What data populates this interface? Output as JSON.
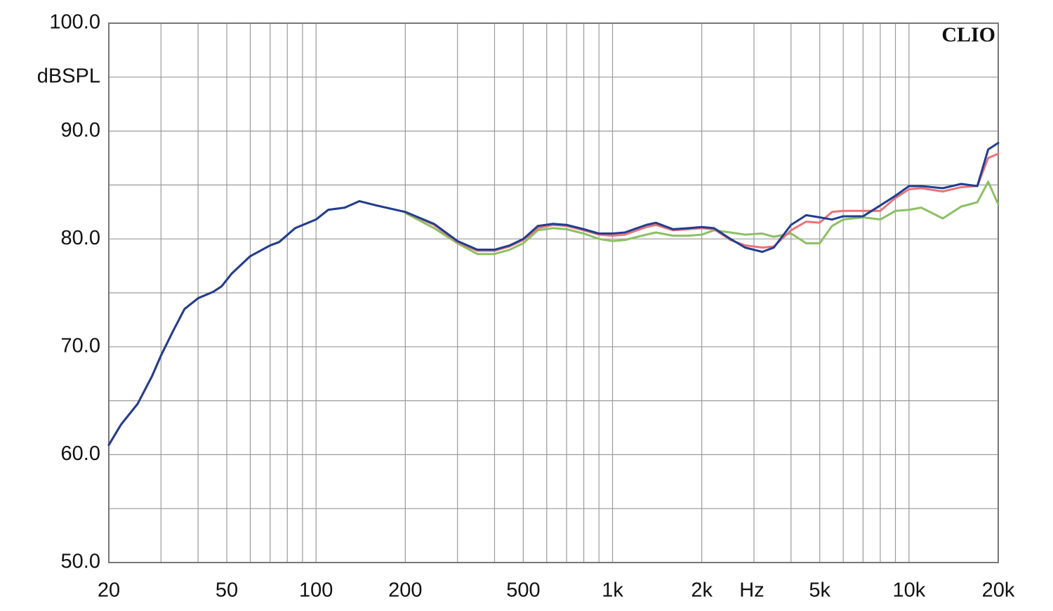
{
  "chart_data": {
    "type": "line",
    "ylabel": "dBSPL",
    "xlabel": "Hz",
    "annotation": "CLIO",
    "xscale": "log",
    "grid": true,
    "xlim": [
      20,
      20000
    ],
    "ylim": [
      50,
      100
    ],
    "yticks": [
      {
        "value": 50,
        "label": "50.0"
      },
      {
        "value": 60,
        "label": "60.0"
      },
      {
        "value": 70,
        "label": "70.0"
      },
      {
        "value": 80,
        "label": "80.0"
      },
      {
        "value": 90,
        "label": "90.0"
      },
      {
        "value": 100,
        "label": "100.0"
      }
    ],
    "yminorticks": [
      55,
      65,
      75,
      85,
      95
    ],
    "xticks": [
      20,
      50,
      100,
      200,
      500,
      {
        "value": 1000,
        "label": "1k"
      },
      {
        "value": 2000,
        "label": "2k"
      },
      {
        "value": 5000,
        "label": "5k"
      },
      {
        "value": 10000,
        "label": "10k"
      },
      {
        "value": 20000,
        "label": "20k"
      }
    ],
    "xminorticks": [
      30,
      40,
      60,
      70,
      80,
      90,
      300,
      400,
      600,
      700,
      800,
      900,
      3000,
      4000,
      6000,
      7000,
      8000,
      9000
    ],
    "x": [
      20,
      22,
      25,
      28,
      30,
      33,
      36,
      40,
      45,
      48,
      52,
      60,
      70,
      75,
      85,
      100,
      110,
      125,
      140,
      160,
      200,
      250,
      300,
      350,
      400,
      450,
      500,
      560,
      630,
      700,
      800,
      900,
      1000,
      1100,
      1300,
      1400,
      1600,
      1800,
      2000,
      2200,
      2500,
      2800,
      3200,
      3500,
      4000,
      4500,
      5000,
      5500,
      6000,
      7000,
      8000,
      9000,
      10000,
      11000,
      13000,
      15000,
      17000,
      18500,
      20000
    ],
    "series": [
      {
        "color": "#8cc063",
        "values": [
          null,
          null,
          null,
          null,
          null,
          null,
          null,
          null,
          null,
          null,
          null,
          null,
          null,
          null,
          null,
          null,
          null,
          null,
          null,
          null,
          82.4,
          81.0,
          79.6,
          78.6,
          78.6,
          79.0,
          79.6,
          80.8,
          81.0,
          80.9,
          80.5,
          80.0,
          79.8,
          79.9,
          80.4,
          80.6,
          80.3,
          80.3,
          80.4,
          80.8,
          80.6,
          80.4,
          80.5,
          80.2,
          80.5,
          79.6,
          79.6,
          81.2,
          81.8,
          82.0,
          81.8,
          82.6,
          82.7,
          82.9,
          81.9,
          83.0,
          83.4,
          85.3,
          83.2
        ]
      },
      {
        "color": "#e8737a",
        "values": [
          60.9,
          62.8,
          64.7,
          67.3,
          69.2,
          71.5,
          73.5,
          74.5,
          75.1,
          75.6,
          76.8,
          78.4,
          79.4,
          79.7,
          81.0,
          81.8,
          82.7,
          82.9,
          83.5,
          83.1,
          82.5,
          81.3,
          79.7,
          78.9,
          78.9,
          79.3,
          79.9,
          81.0,
          81.3,
          81.2,
          80.8,
          80.4,
          80.3,
          80.4,
          81.1,
          81.3,
          80.8,
          80.9,
          81.0,
          80.9,
          79.9,
          79.4,
          79.2,
          79.3,
          80.8,
          81.6,
          81.5,
          82.5,
          82.6,
          82.6,
          82.6,
          83.8,
          84.6,
          84.7,
          84.4,
          84.8,
          84.9,
          87.5,
          87.9
        ]
      },
      {
        "color": "#1f3e8f",
        "values": [
          60.9,
          62.8,
          64.7,
          67.3,
          69.2,
          71.5,
          73.5,
          74.5,
          75.1,
          75.6,
          76.8,
          78.4,
          79.4,
          79.7,
          81.0,
          81.8,
          82.7,
          82.9,
          83.5,
          83.1,
          82.5,
          81.4,
          79.8,
          79.0,
          79.0,
          79.4,
          80.0,
          81.2,
          81.4,
          81.3,
          80.9,
          80.5,
          80.5,
          80.6,
          81.3,
          81.5,
          80.9,
          81.0,
          81.1,
          81.0,
          80.0,
          79.2,
          78.8,
          79.2,
          81.3,
          82.2,
          82.0,
          81.8,
          82.1,
          82.1,
          83.1,
          84.0,
          84.9,
          84.9,
          84.7,
          85.1,
          84.9,
          88.3,
          88.9
        ]
      }
    ]
  }
}
